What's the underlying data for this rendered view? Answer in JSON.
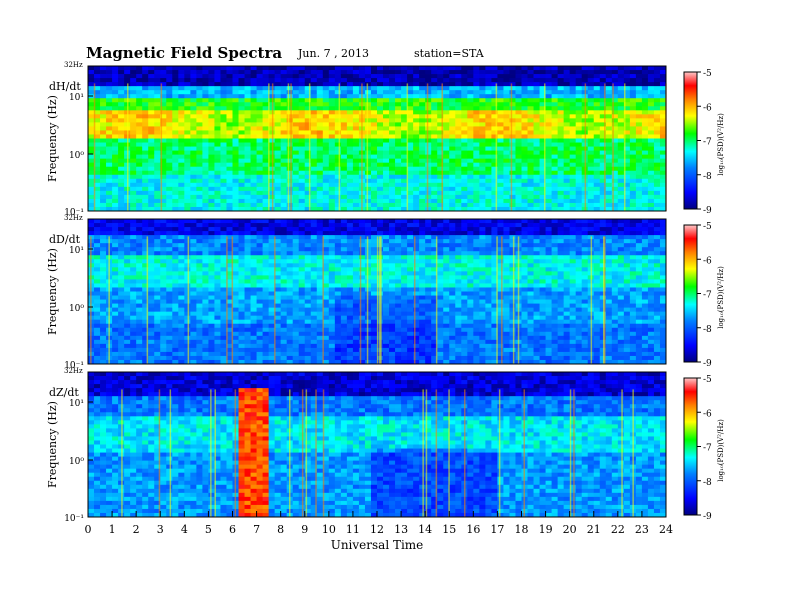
{
  "header": {
    "title": "Magnetic  Field  Spectra",
    "date": "Jun.  7  , 2013",
    "station": "station=STA"
  },
  "chart_data": [
    {
      "type": "heatmap",
      "panel_label": "dH/dt",
      "ylabel": "Frequency  (Hz)",
      "top_label": "32Hz",
      "y_scale": "log",
      "y_ticks": [
        "10¹",
        "10⁰",
        "10⁻¹"
      ],
      "colorbar": {
        "ticks": [
          "-5",
          "-6",
          "-7",
          "-8",
          "-9"
        ],
        "label": "log₁₀(PSD)(V²/Hz)"
      }
    },
    {
      "type": "heatmap",
      "panel_label": "dD/dt",
      "ylabel": "Frequency  (Hz)",
      "top_label": "32Hz",
      "y_scale": "log",
      "y_ticks": [
        "10¹",
        "10⁰",
        "10⁻¹"
      ],
      "colorbar": {
        "ticks": [
          "-5",
          "-6",
          "-7",
          "-8",
          "-9"
        ],
        "label": "log₁₀(PSD)(V²/Hz)"
      }
    },
    {
      "type": "heatmap",
      "panel_label": "dZ/dt",
      "ylabel": "Frequency  (Hz)",
      "top_label": "32Hz",
      "y_scale": "log",
      "y_ticks": [
        "10¹",
        "10⁰",
        "10⁻¹"
      ],
      "colorbar": {
        "ticks": [
          "-5",
          "-6",
          "-7",
          "-8",
          "-9"
        ],
        "label": "log₁₀(PSD)(V²/Hz)"
      }
    }
  ],
  "x_axis": {
    "label": "Universal Time",
    "ticks": [
      "0",
      "1",
      "2",
      "3",
      "4",
      "5",
      "6",
      "7",
      "8",
      "9",
      "10",
      "11",
      "12",
      "13",
      "14",
      "15",
      "16",
      "17",
      "18",
      "19",
      "20",
      "21",
      "22",
      "23",
      "24"
    ],
    "range": [
      0,
      24
    ]
  },
  "colormap": [
    "#000080",
    "#0000ff",
    "#0080ff",
    "#00ffff",
    "#00ff00",
    "#ffff00",
    "#ff8000",
    "#ff0000",
    "#ffc0c0"
  ]
}
